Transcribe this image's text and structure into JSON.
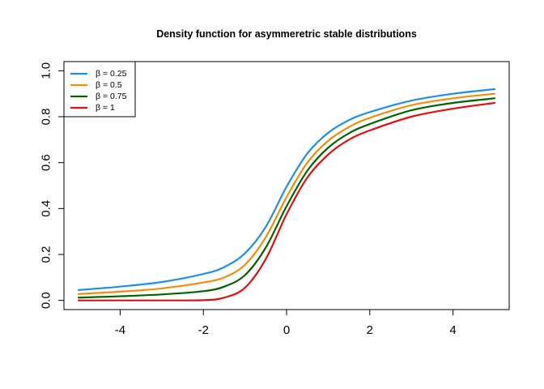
{
  "chart_data": {
    "type": "line",
    "title": "Density function for asymmeretric stable distributions",
    "xlabel": "",
    "ylabel": "",
    "xlim": [
      -5.35,
      5.35
    ],
    "ylim": [
      -0.04,
      1.04
    ],
    "x_ticks": [
      -4,
      -2,
      0,
      2,
      4
    ],
    "x_tick_labels": [
      "-4",
      "-2",
      "0",
      "2",
      "4"
    ],
    "y_ticks": [
      0.0,
      0.2,
      0.4,
      0.6,
      0.8,
      1.0
    ],
    "y_tick_labels": [
      "0.0",
      "0.2",
      "0.4",
      "0.6",
      "0.8",
      "1.0"
    ],
    "grid": false,
    "legend_position": "top-left",
    "x": [
      -5,
      -4,
      -3,
      -2,
      -1.5,
      -1,
      -0.5,
      0,
      0.5,
      1,
      1.5,
      2,
      3,
      4,
      5
    ],
    "series": [
      {
        "name": "β  = 0.25",
        "color": "#1f8fe8",
        "values": [
          0.045,
          0.06,
          0.08,
          0.115,
          0.145,
          0.205,
          0.32,
          0.495,
          0.64,
          0.73,
          0.785,
          0.82,
          0.87,
          0.9,
          0.92
        ]
      },
      {
        "name": "β  = 0.5",
        "color": "#f28c0c",
        "values": [
          0.028,
          0.038,
          0.052,
          0.078,
          0.1,
          0.155,
          0.275,
          0.45,
          0.6,
          0.695,
          0.755,
          0.795,
          0.85,
          0.88,
          0.9
        ]
      },
      {
        "name": "β  = 0.75",
        "color": "#006400",
        "values": [
          0.012,
          0.018,
          0.026,
          0.04,
          0.06,
          0.11,
          0.23,
          0.41,
          0.565,
          0.665,
          0.728,
          0.768,
          0.828,
          0.86,
          0.88
        ]
      },
      {
        "name": "β  = 1",
        "color": "#e01010",
        "values": [
          0.0,
          0.0,
          0.0,
          0.001,
          0.012,
          0.055,
          0.18,
          0.375,
          0.535,
          0.635,
          0.7,
          0.74,
          0.8,
          0.835,
          0.86
        ]
      }
    ]
  }
}
